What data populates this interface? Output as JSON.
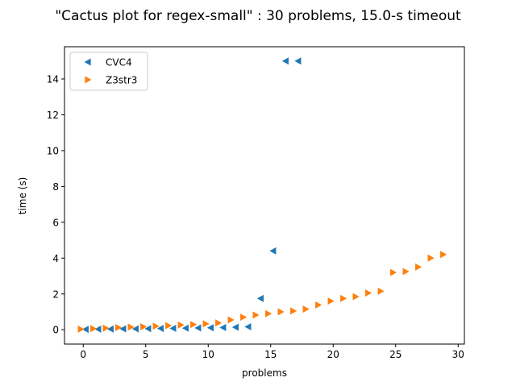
{
  "chart_data": {
    "type": "scatter",
    "title": "\"Cactus plot for regex-small\" : 30 problems, 15.0-s timeout",
    "xlabel": "problems",
    "ylabel": "time (s)",
    "xlim": [
      -1.5,
      30.5
    ],
    "ylim": [
      -0.8,
      15.8
    ],
    "xticks": [
      0,
      5,
      10,
      15,
      20,
      25,
      30
    ],
    "yticks": [
      0,
      2,
      4,
      6,
      8,
      10,
      12,
      14
    ],
    "grid": false,
    "legend_position": "top-left",
    "series": [
      {
        "name": "CVC4",
        "marker": "triangle-left",
        "color": "#1f77b4",
        "x": [
          0.2,
          1.2,
          2.2,
          3.2,
          4.2,
          5.2,
          6.2,
          7.2,
          8.2,
          9.2,
          10.2,
          11.2,
          12.2,
          13.2,
          14.2,
          15.2,
          16.2,
          17.2
        ],
        "y": [
          0.02,
          0.03,
          0.04,
          0.05,
          0.05,
          0.06,
          0.07,
          0.08,
          0.09,
          0.1,
          0.11,
          0.12,
          0.14,
          0.17,
          1.75,
          4.4,
          15.0,
          15.0
        ]
      },
      {
        "name": "Z3str3",
        "marker": "triangle-right",
        "color": "#ff7f0e",
        "x": [
          -0.2,
          0.8,
          1.8,
          2.8,
          3.8,
          4.8,
          5.8,
          6.8,
          7.8,
          8.8,
          9.8,
          10.8,
          11.8,
          12.8,
          13.8,
          14.8,
          15.8,
          16.8,
          17.8,
          18.8,
          19.8,
          20.8,
          21.8,
          22.8,
          23.8,
          24.8,
          25.8,
          26.8,
          27.8,
          28.8
        ],
        "y": [
          0.03,
          0.06,
          0.09,
          0.12,
          0.15,
          0.17,
          0.2,
          0.23,
          0.26,
          0.29,
          0.33,
          0.38,
          0.55,
          0.7,
          0.82,
          0.9,
          1.0,
          1.05,
          1.15,
          1.38,
          1.6,
          1.75,
          1.85,
          2.05,
          2.15,
          3.2,
          3.25,
          3.5,
          4.0,
          4.2
        ]
      }
    ]
  }
}
